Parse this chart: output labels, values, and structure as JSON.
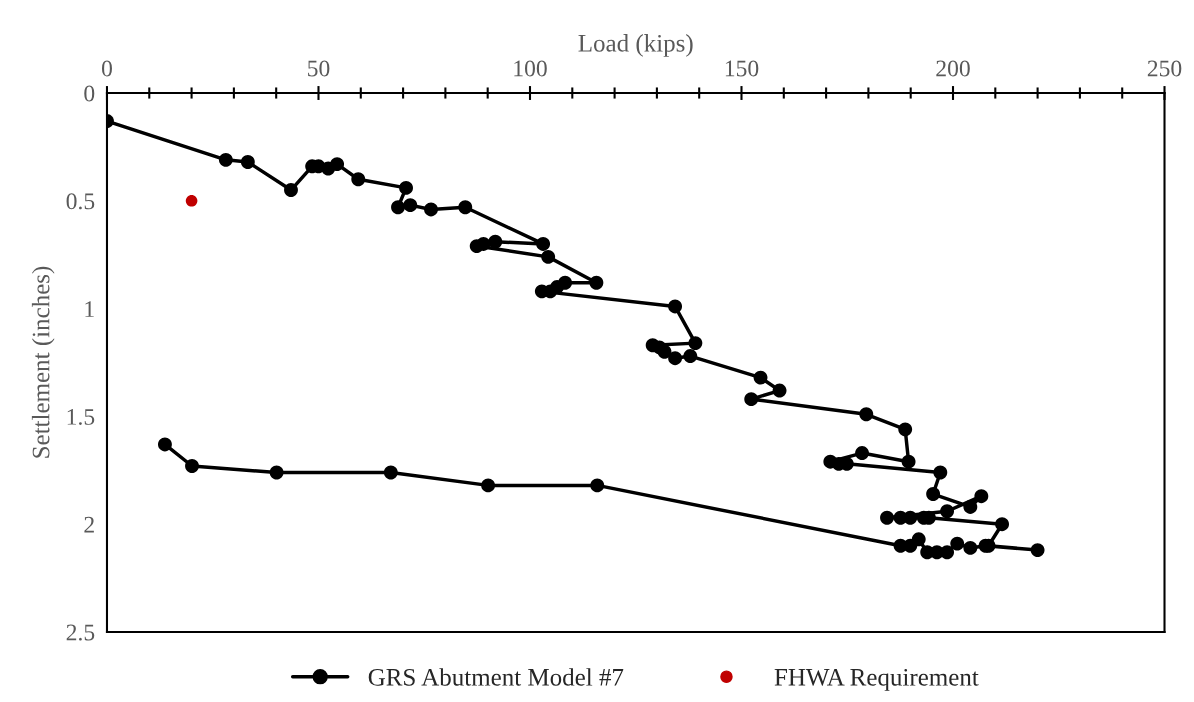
{
  "chart_data": {
    "type": "line",
    "xlabel": "Load (kips)",
    "ylabel": "Settlement (inches)",
    "xlim": [
      0,
      250
    ],
    "xticks": [
      0,
      50,
      100,
      150,
      200,
      250
    ],
    "ylim": [
      2.5,
      0
    ],
    "yticks": [
      0,
      0.5,
      1,
      1.5,
      2,
      2.5
    ],
    "grid": false,
    "legend": "bottom",
    "series": [
      {
        "name": "GRS Abutment Model #7",
        "marker": "circle",
        "line_style": "solid",
        "color": "#000000",
        "x": [
          0,
          28.1,
          33.3,
          43.5,
          48.5,
          50,
          52.3,
          54.4,
          59.4,
          70.7,
          68.8,
          71.7,
          76.6,
          84.7,
          103.1,
          91.8,
          89.0,
          87.4,
          104.3,
          115.7,
          108.3,
          106.4,
          104.8,
          102.8,
          134.3,
          139.1,
          129.0,
          130.6,
          131.8,
          134.3,
          137.9,
          154.5,
          159.0,
          152.3,
          179.5,
          188.7,
          189.5,
          178.5,
          171.0,
          173.0,
          174.9,
          197.0,
          195.3,
          204.1,
          206.7,
          198.6,
          184.4,
          187.6,
          189.9,
          193.1,
          194.3,
          211.6,
          208.4,
          220.0,
          207.7,
          204.1,
          201.0,
          198.6,
          196.2,
          193.9,
          191.9,
          189.9,
          187.6,
          115.9,
          90.1,
          67.1,
          40.1,
          20.1,
          13.7
        ],
        "values": [
          0.13,
          0.31,
          0.32,
          0.45,
          0.34,
          0.34,
          0.35,
          0.33,
          0.4,
          0.44,
          0.53,
          0.52,
          0.54,
          0.53,
          0.7,
          0.69,
          0.7,
          0.71,
          0.76,
          0.88,
          0.88,
          0.9,
          0.92,
          0.92,
          0.99,
          1.16,
          1.17,
          1.18,
          1.2,
          1.23,
          1.22,
          1.32,
          1.38,
          1.42,
          1.49,
          1.56,
          1.71,
          1.67,
          1.71,
          1.72,
          1.72,
          1.76,
          1.86,
          1.92,
          1.87,
          1.94,
          1.97,
          1.97,
          1.97,
          1.97,
          1.97,
          2.0,
          2.1,
          2.12,
          2.1,
          2.11,
          2.09,
          2.13,
          2.13,
          2.13,
          2.07,
          2.1,
          2.1,
          1.82,
          1.82,
          1.76,
          1.76,
          1.73,
          1.63
        ]
      },
      {
        "name": "FHWA Requirement",
        "type": "scatter",
        "marker": "circle",
        "color": "#c00000",
        "x": [
          20
        ],
        "values": [
          0.5
        ]
      }
    ]
  }
}
